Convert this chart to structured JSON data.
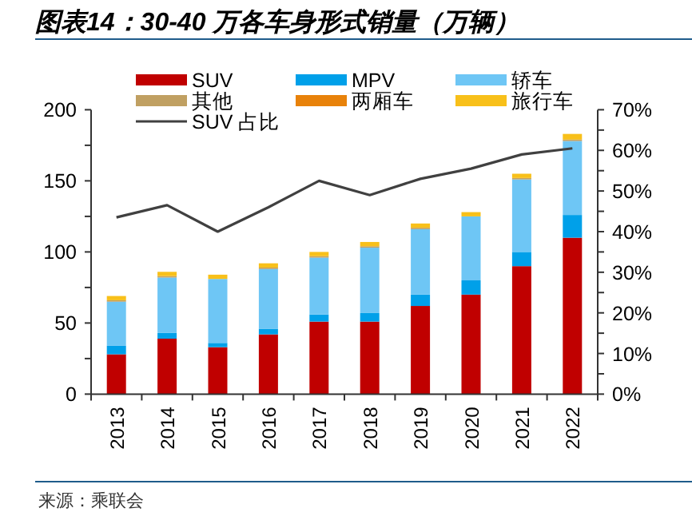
{
  "chart_data": {
    "type": "bar",
    "title": "图表14：30-40 万各车身形式销量（万辆）",
    "annotations": [
      "来源：乘联会"
    ],
    "categories": [
      "2013",
      "2014",
      "2015",
      "2016",
      "2017",
      "2018",
      "2019",
      "2020",
      "2021",
      "2022"
    ],
    "stacked": true,
    "series": [
      {
        "name": "SUV",
        "color": "#c00000",
        "values": [
          28,
          39,
          33,
          42,
          51,
          51,
          62,
          70,
          90,
          110
        ]
      },
      {
        "name": "MPV",
        "color": "#00a0e9",
        "values": [
          6,
          4,
          3,
          4,
          5,
          6,
          8,
          10,
          10,
          16
        ]
      },
      {
        "name": "轿车",
        "color": "#6ec6f5",
        "values": [
          31,
          39,
          45,
          42,
          40,
          46,
          46,
          45,
          51,
          52
        ]
      },
      {
        "name": "其他",
        "color": "#c0a062",
        "values": [
          1,
          1,
          null,
          1,
          1,
          1,
          1,
          null,
          1,
          1
        ]
      },
      {
        "name": "两厢车",
        "color": "#e8820a",
        "values": [
          0,
          0,
          0,
          0,
          0,
          0,
          0,
          0,
          0,
          0
        ]
      },
      {
        "name": "旅行车",
        "color": "#f8c01a",
        "values": [
          3,
          3,
          3,
          3,
          3,
          3,
          3,
          3,
          3,
          4
        ]
      },
      {
        "name": "SUV 占比",
        "type": "line",
        "axis": "y2",
        "color": "#404040",
        "values": [
          43.5,
          46.5,
          40,
          46,
          52.5,
          49,
          53,
          55.5,
          59,
          60.5
        ]
      }
    ],
    "ylim": [
      0,
      200
    ],
    "yticks": [
      0,
      {
        "value": 25,
        "label": null
      },
      50,
      {
        "value": 75,
        "label": null
      },
      100,
      {
        "value": 125,
        "label": null
      },
      150,
      {
        "value": 175,
        "label": null
      },
      200
    ],
    "y2lim": [
      0,
      70
    ],
    "y2ticks": [
      {
        "value": 0,
        "label": "0%"
      },
      {
        "value": 5,
        "label": null
      },
      {
        "value": 10,
        "label": "10%"
      },
      {
        "value": 15,
        "label": null
      },
      {
        "value": 20,
        "label": "20%"
      },
      {
        "value": 25,
        "label": null
      },
      {
        "value": 30,
        "label": "30%"
      },
      {
        "value": 35,
        "label": null
      },
      {
        "value": 40,
        "label": "40%"
      },
      {
        "value": 45,
        "label": null
      },
      {
        "value": 50,
        "label": "50%"
      },
      {
        "value": 55,
        "label": null
      },
      {
        "value": 60,
        "label": "60%"
      },
      {
        "value": 65,
        "label": null
      },
      {
        "value": 70,
        "label": "70%"
      }
    ],
    "grid": false,
    "legend": "top"
  }
}
